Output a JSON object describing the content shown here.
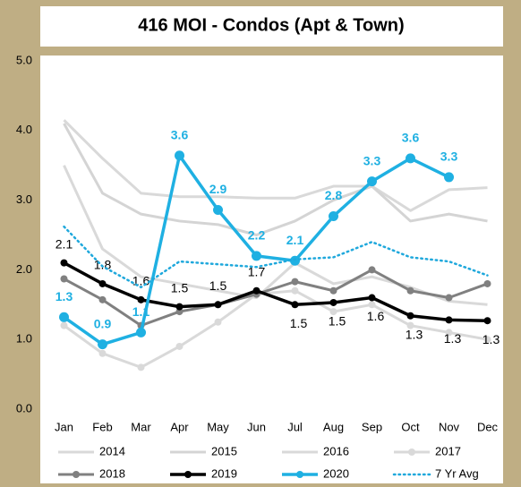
{
  "chart_data": {
    "type": "line",
    "title": "416 MOI - Condos (Apt & Town)",
    "categories": [
      "Jan",
      "Feb",
      "Mar",
      "Apr",
      "May",
      "Jun",
      "Jul",
      "Aug",
      "Sep",
      "Oct",
      "Nov",
      "Dec"
    ],
    "ylim": [
      0,
      5
    ],
    "yticks": [
      {
        "value": 0,
        "label": "0.0"
      },
      {
        "value": 1,
        "label": "1.0"
      },
      {
        "value": 2,
        "label": "2.0"
      },
      {
        "value": 3,
        "label": "3.0"
      },
      {
        "value": 4,
        "label": "4.0"
      },
      {
        "value": 5,
        "label": "5.0"
      }
    ],
    "series": [
      {
        "name": "2014",
        "color": "#d9d9d9",
        "marker": false,
        "values": [
          4.15,
          3.6,
          3.1,
          3.05,
          3.05,
          3.03,
          3.03,
          3.2,
          3.2,
          2.85,
          3.15,
          3.18
        ]
      },
      {
        "name": "2015",
        "color": "#d4d4d4",
        "marker": false,
        "values": [
          4.1,
          3.1,
          2.8,
          2.7,
          2.65,
          2.5,
          2.7,
          3.0,
          3.2,
          2.7,
          2.8,
          2.7
        ]
      },
      {
        "name": "2016",
        "color": "#d9d9d9",
        "marker": false,
        "values": [
          3.5,
          2.3,
          1.9,
          1.8,
          1.7,
          1.6,
          2.1,
          1.8,
          1.9,
          1.75,
          1.55,
          1.5
        ]
      },
      {
        "name": "2017",
        "color": "#d9d9d9",
        "marker": true,
        "values": [
          1.2,
          0.8,
          0.6,
          0.9,
          1.25,
          1.65,
          1.7,
          1.4,
          1.5,
          1.2,
          1.1,
          1.0
        ]
      },
      {
        "name": "2018",
        "color": "#808080",
        "marker": true,
        "values": [
          1.87,
          1.57,
          1.2,
          1.4,
          1.5,
          1.65,
          1.83,
          1.7,
          2.0,
          1.7,
          1.6,
          1.8
        ]
      },
      {
        "name": "2019",
        "color": "#000000",
        "marker": true,
        "values": [
          2.1,
          1.8,
          1.57,
          1.47,
          1.5,
          1.7,
          1.5,
          1.53,
          1.6,
          1.34,
          1.28,
          1.27
        ],
        "value_labels": [
          "2.1",
          "1.8",
          "1.6",
          "1.5",
          "1.5",
          "1.7",
          "1.5",
          "1.5",
          "1.6",
          "1.3",
          "1.3",
          "1.3"
        ]
      },
      {
        "name": "2020",
        "color": "#1fb0e2",
        "marker": true,
        "values": [
          1.32,
          0.93,
          1.1,
          3.64,
          2.86,
          2.2,
          2.13,
          2.77,
          3.27,
          3.6,
          3.33,
          null
        ],
        "value_labels": [
          "1.3",
          "0.9",
          "1.1",
          "3.6",
          "2.9",
          "2.2",
          "2.1",
          "2.8",
          "3.3",
          "3.6",
          "3.3",
          null
        ]
      },
      {
        "name": "7 Yr Avg",
        "color": "#1fa8dc",
        "marker": false,
        "dotted": true,
        "values": [
          2.62,
          2.05,
          1.75,
          2.12,
          2.08,
          2.04,
          2.15,
          2.18,
          2.4,
          2.18,
          2.12,
          1.92
        ]
      }
    ]
  }
}
